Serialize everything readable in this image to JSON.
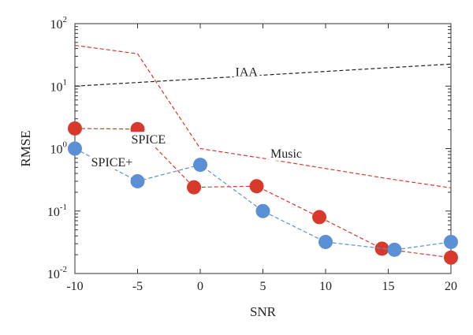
{
  "chart_data": {
    "type": "line",
    "title": "",
    "xlabel": "SNR",
    "ylabel": "RMSE",
    "xscale": "linear",
    "yscale": "log",
    "xlim": [
      -10,
      20
    ],
    "ylim": [
      0.01,
      100
    ],
    "xticks": [
      -10,
      -5,
      0,
      5,
      10,
      15,
      20
    ],
    "xtick_labels": [
      "-10",
      "-5",
      "0",
      "5",
      "10",
      "15",
      "20"
    ],
    "yticks": [
      {
        "value": 0.01,
        "base": "10",
        "exp": "-2"
      },
      {
        "value": 0.1,
        "base": "10",
        "exp": "-1"
      },
      {
        "value": 1,
        "base": "10",
        "exp": "0"
      },
      {
        "value": 10,
        "base": "10",
        "exp": "1"
      },
      {
        "value": 100,
        "base": "10",
        "exp": "2"
      }
    ],
    "grid": false,
    "legend": "none",
    "series": [
      {
        "name": "IAA",
        "color": "#222222",
        "line": "dashed",
        "marker": "none",
        "x": [
          -10,
          20
        ],
        "y": [
          10,
          22.5
        ]
      },
      {
        "name": "Music",
        "color": "#d73a2a",
        "line": "dashed",
        "marker": "none",
        "x": [
          -10,
          -5,
          0,
          5,
          10,
          15,
          20
        ],
        "y": [
          45,
          33,
          1.0,
          0.7,
          0.48,
          0.33,
          0.235
        ]
      },
      {
        "name": "SPICE",
        "color": "#d73a2a",
        "line": "dashed",
        "marker": "circle",
        "x": [
          -10,
          -5,
          -0.5,
          4.5,
          9.5,
          14.5,
          20
        ],
        "y": [
          2.1,
          2.05,
          0.24,
          0.25,
          0.08,
          0.025,
          0.018
        ]
      },
      {
        "name": "SPICE+",
        "color": "#5b8fd6",
        "line": "dashed",
        "marker": "circle",
        "x": [
          -10,
          -5,
          0,
          5,
          10,
          15.5,
          20
        ],
        "y": [
          1.0,
          0.3,
          0.55,
          0.1,
          0.032,
          0.024,
          0.032
        ]
      }
    ],
    "annotations": [
      {
        "text": "IAA",
        "x": 2.8,
        "y": 14.5
      },
      {
        "text": "Music",
        "x": 5.6,
        "y": 0.72
      },
      {
        "text": "SPICE",
        "x": -5.5,
        "y": 1.2
      },
      {
        "text": "SPICE+",
        "x": -8.7,
        "y": 0.52
      }
    ]
  }
}
